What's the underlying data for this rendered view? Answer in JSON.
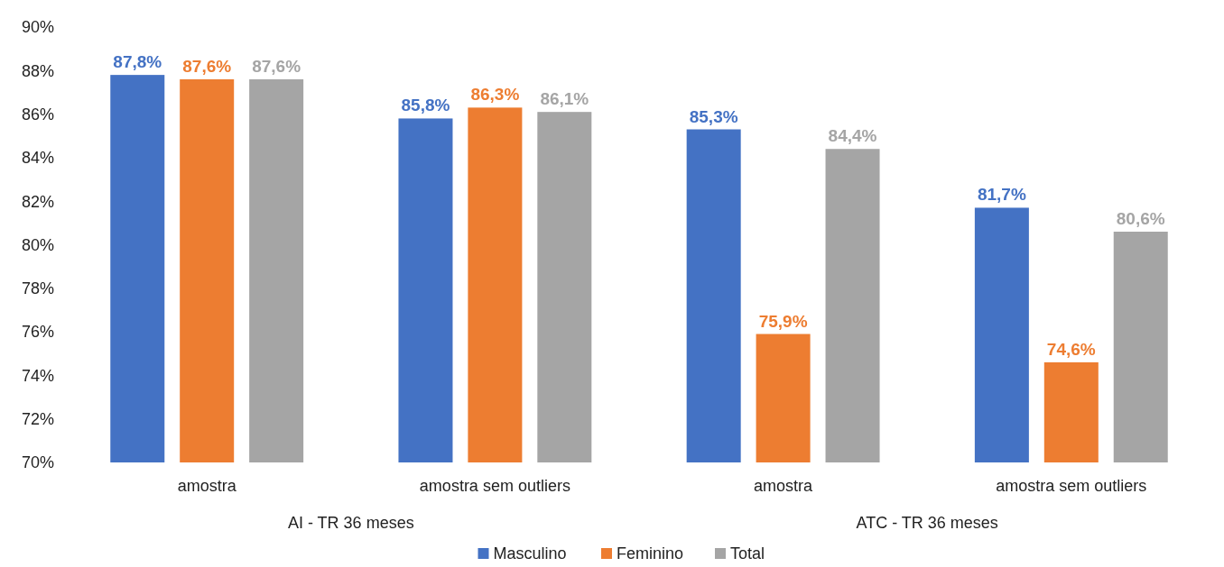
{
  "chart_data": {
    "type": "bar",
    "categories": [
      "amostra",
      "amostra sem outliers",
      "amostra",
      "amostra sem outliers"
    ],
    "series": [
      {
        "name": "Masculino",
        "color": "#4472c4",
        "values": [
          87.8,
          85.8,
          85.3,
          81.7
        ],
        "value_labels": [
          "87,8%",
          "85,8%",
          "85,3%",
          "81,7%"
        ]
      },
      {
        "name": "Feminino",
        "color": "#ed7d31",
        "values": [
          87.6,
          86.3,
          75.9,
          74.6
        ],
        "value_labels": [
          "87,6%",
          "86,3%",
          "75,9%",
          "74,6%"
        ]
      },
      {
        "name": "Total",
        "color": "#a5a5a5",
        "values": [
          87.6,
          86.1,
          84.4,
          80.6
        ],
        "value_labels": [
          "87,6%",
          "86,1%",
          "84,4%",
          "80,6%"
        ]
      }
    ],
    "annotations": [
      "AI - TR 36 meses",
      "ATC - TR 36 meses"
    ],
    "ylim": [
      70,
      90
    ],
    "yticks": [
      {
        "value": 70,
        "label": "70%"
      },
      {
        "value": 72,
        "label": "72%"
      },
      {
        "value": 74,
        "label": "74%"
      },
      {
        "value": 76,
        "label": "76%"
      },
      {
        "value": 78,
        "label": "78%"
      },
      {
        "value": 80,
        "label": "80%"
      },
      {
        "value": 82,
        "label": "82%"
      },
      {
        "value": 84,
        "label": "84%"
      },
      {
        "value": 86,
        "label": "86%"
      },
      {
        "value": 88,
        "label": "88%"
      },
      {
        "value": 90,
        "label": "90%"
      }
    ],
    "legend": "bottom"
  }
}
